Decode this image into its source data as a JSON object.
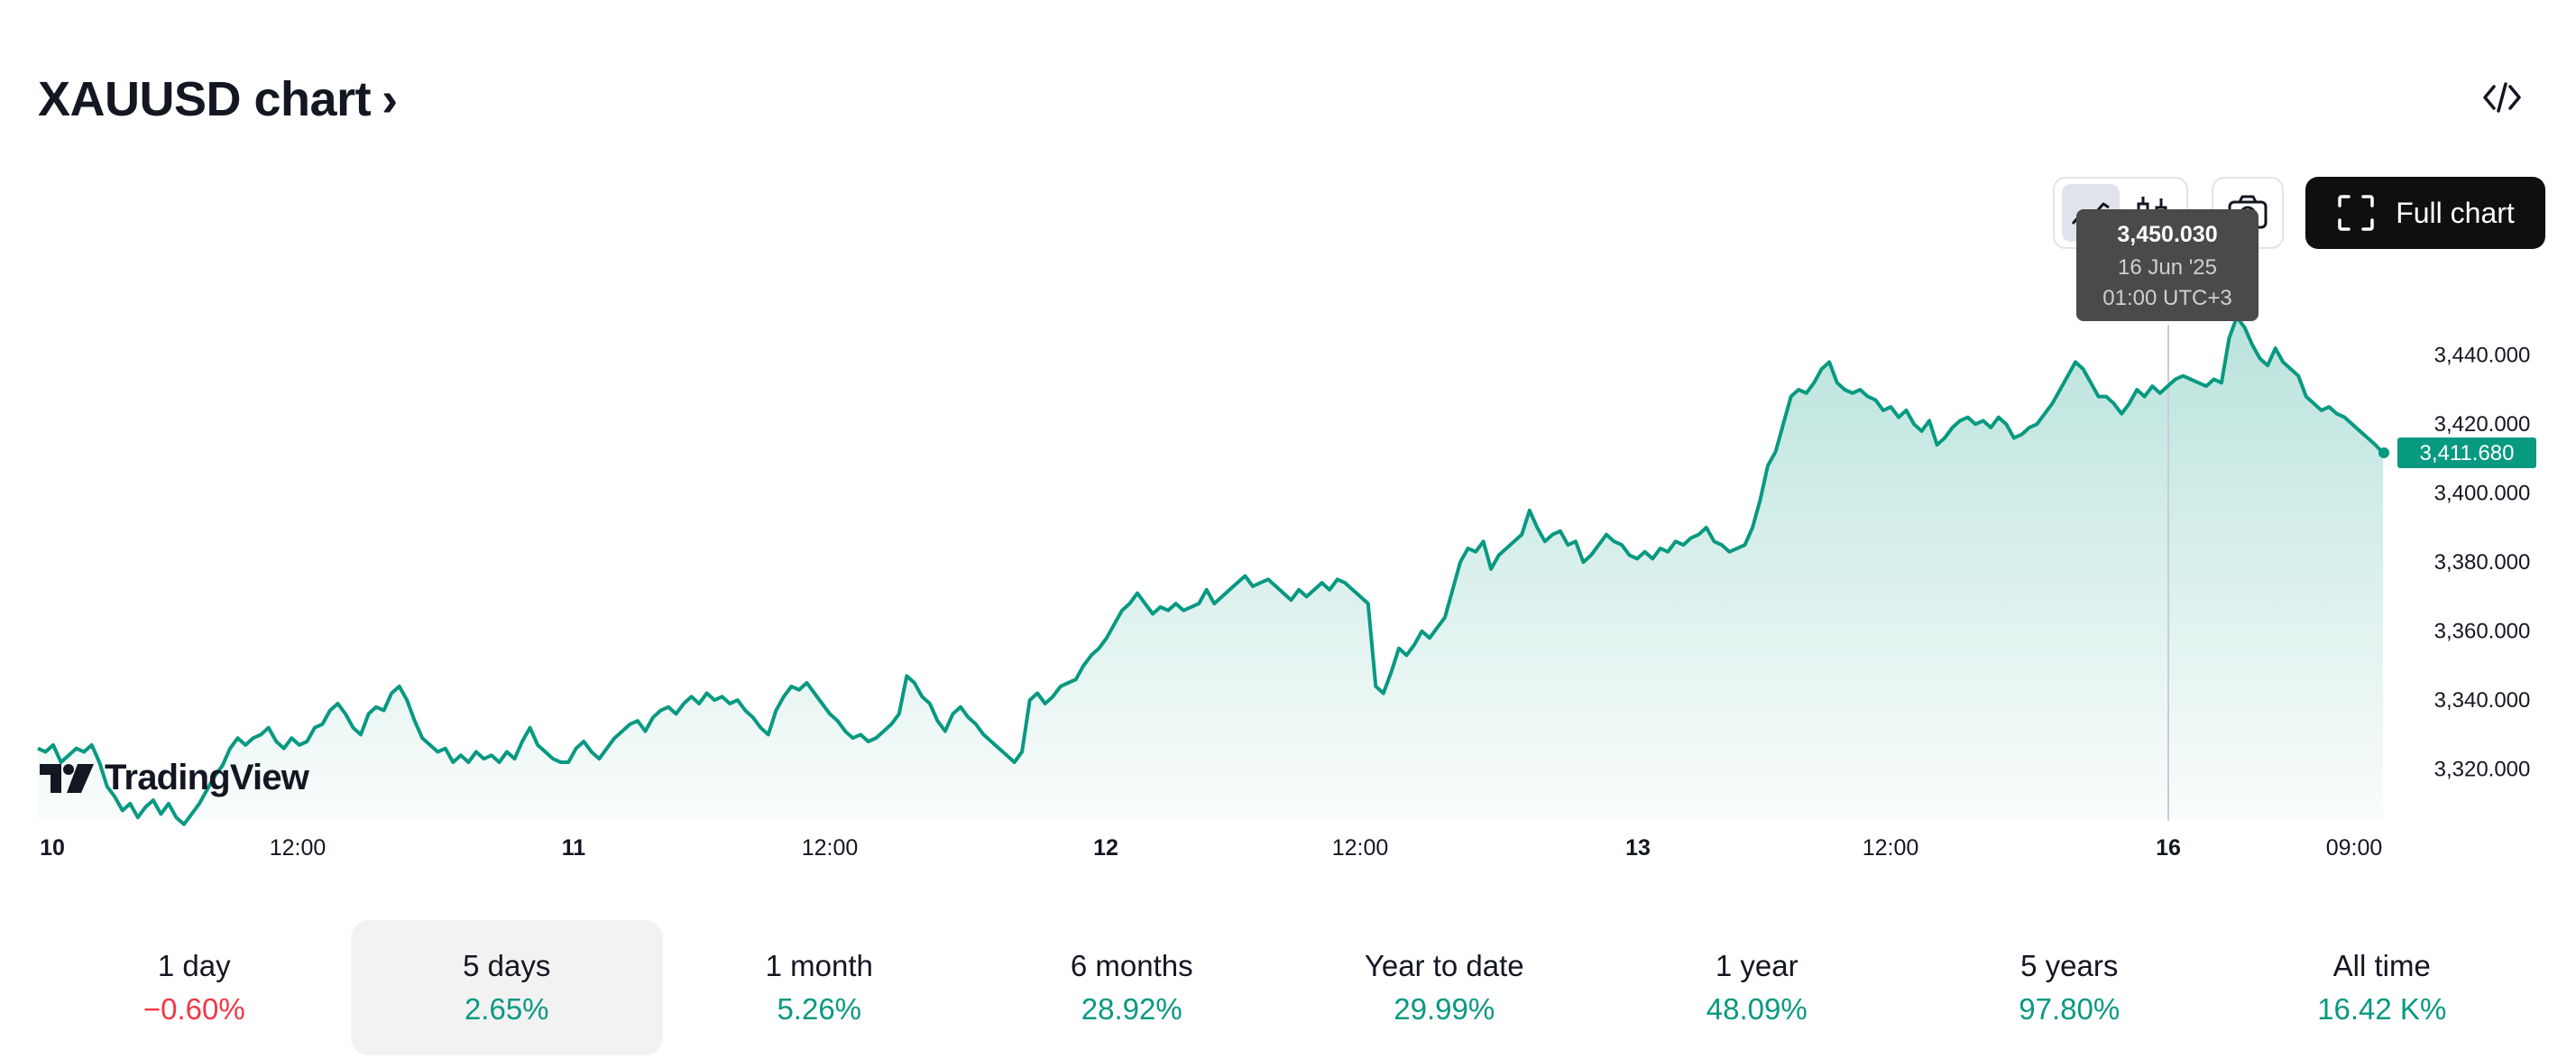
{
  "header": {
    "title": "XAUUSD chart",
    "chevron": "›",
    "embed_icon": "code-brackets-icon"
  },
  "toolbar": {
    "chart_style_buttons": [
      {
        "icon": "area-chart-icon",
        "active": true
      },
      {
        "icon": "candles-icon",
        "active": false
      }
    ],
    "screenshot_icon": "camera-icon",
    "full_chart_label": "Full chart",
    "full_chart_icon": "fullscreen-icon"
  },
  "tooltip": {
    "value": "3,450.030",
    "date": "16 Jun '25",
    "time": "01:00 UTC+3"
  },
  "branding": {
    "logo_text": "TradingView"
  },
  "colors": {
    "line": "#089981",
    "up": "#089981",
    "down": "#f23645",
    "tooltip_bg": "#4a4a4a"
  },
  "chart_data": {
    "type": "area",
    "x_tick_labels": [
      "10",
      "12:00",
      "11",
      "12:00",
      "12",
      "12:00",
      "13",
      "12:00",
      "16",
      "09:00"
    ],
    "x_tick_bold": [
      true,
      false,
      true,
      false,
      true,
      false,
      true,
      false,
      true,
      false
    ],
    "y_ticks": [
      3320,
      3340,
      3360,
      3380,
      3400,
      3420,
      3440
    ],
    "y_tick_labels": [
      "3,320.000",
      "3,340.000",
      "3,360.000",
      "3,380.000",
      "3,400.000",
      "3,420.000",
      "3,440.000"
    ],
    "ylim": [
      3305,
      3453
    ],
    "last_value": 3411.68,
    "last_label": "3,411.680",
    "crosshair_time": "16 Jun '25 01:00 UTC+3",
    "series": [
      {
        "values": [
          3326,
          3325,
          3327,
          3322,
          3324,
          3326,
          3325,
          3327,
          3322,
          3315,
          3312,
          3308,
          3310,
          3306,
          3309,
          3311,
          3307,
          3310,
          3306,
          3304,
          3307,
          3310,
          3314,
          3318,
          3321,
          3326,
          3329,
          3327,
          3329,
          3330,
          3332,
          3328,
          3326,
          3329,
          3327,
          3328,
          3332,
          3333,
          3337,
          3339,
          3336,
          3332,
          3330,
          3336,
          3338,
          3337,
          3342,
          3344,
          3340,
          3334,
          3329,
          3327,
          3325,
          3326,
          3322,
          3324,
          3322,
          3325,
          3323,
          3324,
          3322,
          3325,
          3323,
          3328,
          3332,
          3327,
          3325,
          3323,
          3322,
          3322,
          3326,
          3328,
          3325,
          3323,
          3326,
          3329,
          3331,
          3333,
          3334,
          3331,
          3335,
          3337,
          3338,
          3336,
          3339,
          3341,
          3339,
          3342,
          3340,
          3341,
          3339,
          3340,
          3337,
          3335,
          3332,
          3330,
          3337,
          3341,
          3344,
          3343,
          3345,
          3342,
          3339,
          3336,
          3334,
          3331,
          3329,
          3330,
          3328,
          3329,
          3331,
          3333,
          3336,
          3347,
          3345,
          3341,
          3339,
          3334,
          3331,
          3336,
          3338,
          3335,
          3333,
          3330,
          3328,
          3326,
          3324,
          3322,
          3325,
          3340,
          3342,
          3339,
          3341,
          3344,
          3345,
          3346,
          3350,
          3353,
          3355,
          3358,
          3362,
          3366,
          3368,
          3371,
          3368,
          3365,
          3367,
          3366,
          3368,
          3366,
          3367,
          3368,
          3372,
          3368,
          3370,
          3372,
          3374,
          3376,
          3373,
          3374,
          3375,
          3373,
          3371,
          3369,
          3372,
          3370,
          3372,
          3374,
          3372,
          3375,
          3374,
          3372,
          3370,
          3368,
          3344,
          3342,
          3348,
          3355,
          3353,
          3356,
          3360,
          3358,
          3361,
          3364,
          3372,
          3380,
          3384,
          3383,
          3386,
          3378,
          3382,
          3384,
          3386,
          3388,
          3395,
          3390,
          3386,
          3388,
          3389,
          3385,
          3386,
          3380,
          3382,
          3385,
          3388,
          3386,
          3385,
          3382,
          3381,
          3383,
          3381,
          3384,
          3383,
          3386,
          3385,
          3387,
          3388,
          3390,
          3386,
          3385,
          3383,
          3384,
          3385,
          3390,
          3398,
          3408,
          3412,
          3420,
          3428,
          3430,
          3429,
          3432,
          3436,
          3438,
          3432,
          3430,
          3429,
          3430,
          3428,
          3427,
          3424,
          3425,
          3422,
          3424,
          3420,
          3418,
          3421,
          3414,
          3416,
          3419,
          3421,
          3422,
          3420,
          3421,
          3419,
          3422,
          3420,
          3416,
          3417,
          3419,
          3420,
          3423,
          3426,
          3430,
          3434,
          3438,
          3436,
          3432,
          3428,
          3428,
          3426,
          3423,
          3426,
          3430,
          3428,
          3431,
          3429,
          3431,
          3433,
          3434,
          3433,
          3432,
          3431,
          3433,
          3432,
          3445,
          3451,
          3448,
          3443,
          3439,
          3437,
          3442,
          3438,
          3436,
          3434,
          3428,
          3426,
          3424,
          3425,
          3423,
          3422,
          3420,
          3418,
          3416,
          3414,
          3411.68
        ]
      }
    ]
  },
  "periods": [
    {
      "label": "1 day",
      "change": "−0.60%",
      "dir": "down",
      "active": false
    },
    {
      "label": "5 days",
      "change": "2.65%",
      "dir": "up",
      "active": true
    },
    {
      "label": "1 month",
      "change": "5.26%",
      "dir": "up",
      "active": false
    },
    {
      "label": "6 months",
      "change": "28.92%",
      "dir": "up",
      "active": false
    },
    {
      "label": "Year to date",
      "change": "29.99%",
      "dir": "up",
      "active": false
    },
    {
      "label": "1 year",
      "change": "48.09%",
      "dir": "up",
      "active": false
    },
    {
      "label": "5 years",
      "change": "97.80%",
      "dir": "up",
      "active": false
    },
    {
      "label": "All time",
      "change": "16.42 K%",
      "dir": "up",
      "active": false
    }
  ]
}
